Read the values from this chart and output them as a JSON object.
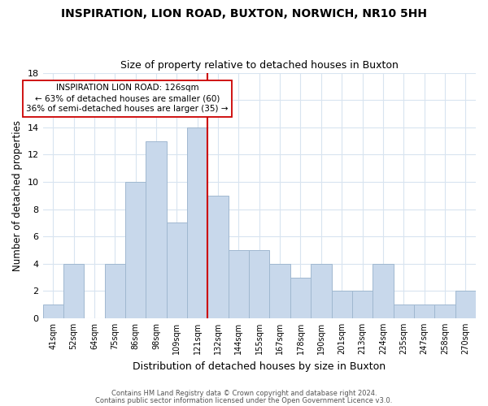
{
  "title": "INSPIRATION, LION ROAD, BUXTON, NORWICH, NR10 5HH",
  "subtitle": "Size of property relative to detached houses in Buxton",
  "xlabel": "Distribution of detached houses by size in Buxton",
  "ylabel": "Number of detached properties",
  "bar_color": "#c8d8eb",
  "bar_edgecolor": "#a0b8d0",
  "bin_labels": [
    "41sqm",
    "52sqm",
    "64sqm",
    "75sqm",
    "86sqm",
    "98sqm",
    "109sqm",
    "121sqm",
    "132sqm",
    "144sqm",
    "155sqm",
    "167sqm",
    "178sqm",
    "190sqm",
    "201sqm",
    "213sqm",
    "224sqm",
    "235sqm",
    "247sqm",
    "258sqm",
    "270sqm"
  ],
  "counts": [
    1,
    4,
    0,
    4,
    10,
    13,
    7,
    14,
    9,
    5,
    5,
    4,
    3,
    4,
    2,
    2,
    4,
    1,
    1,
    1,
    2
  ],
  "vline_x": 7.5,
  "vline_color": "#cc0000",
  "annotation_line1": "INSPIRATION LION ROAD: 126sqm",
  "annotation_line2": "← 63% of detached houses are smaller (60)",
  "annotation_line3": "36% of semi-detached houses are larger (35) →",
  "ylim": [
    0,
    18
  ],
  "yticks": [
    0,
    2,
    4,
    6,
    8,
    10,
    12,
    14,
    16,
    18
  ],
  "footer1": "Contains HM Land Registry data © Crown copyright and database right 2024.",
  "footer2": "Contains public sector information licensed under the Open Government Licence v3.0.",
  "background_color": "#ffffff",
  "grid_color": "#d8e4f0"
}
